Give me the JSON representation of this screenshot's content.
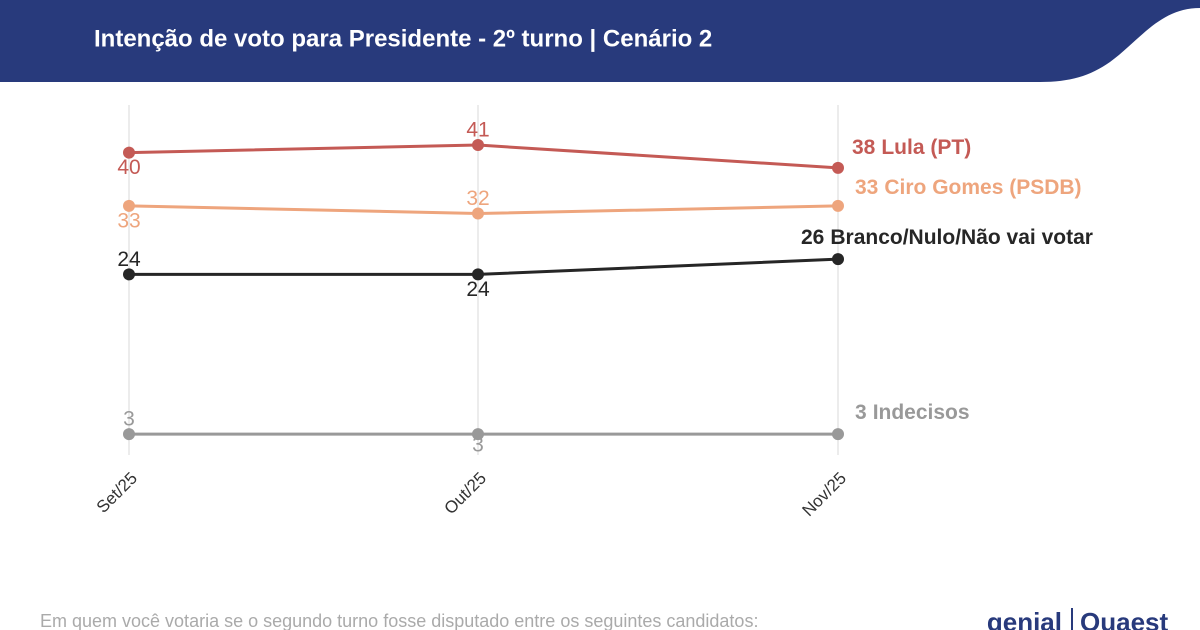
{
  "chart_data": {
    "type": "line",
    "title": "Intenção de voto para Presidente - 2º turno | Cenário 2",
    "note": "Em quem você votaria se o segundo turno fosse disputado entre os seguintes candidatos:",
    "brand": [
      "genial",
      "Quaest"
    ],
    "categories": [
      "Set/25",
      "Out/25",
      "Nov/25"
    ],
    "ylim": [
      0,
      46
    ],
    "grid": true,
    "series": [
      {
        "name": "Lula (PT)",
        "color": "#c45a55",
        "values": [
          40,
          41,
          38
        ]
      },
      {
        "name": "Ciro Gomes (PSDB)",
        "color": "#eea57d",
        "values": [
          33,
          32,
          33
        ]
      },
      {
        "name": "Branco/Nulo/Não vai votar",
        "color": "#262626",
        "values": [
          24,
          24,
          26
        ]
      },
      {
        "name": "Indecisos",
        "color": "#999999",
        "values": [
          3,
          3,
          3
        ]
      }
    ]
  }
}
